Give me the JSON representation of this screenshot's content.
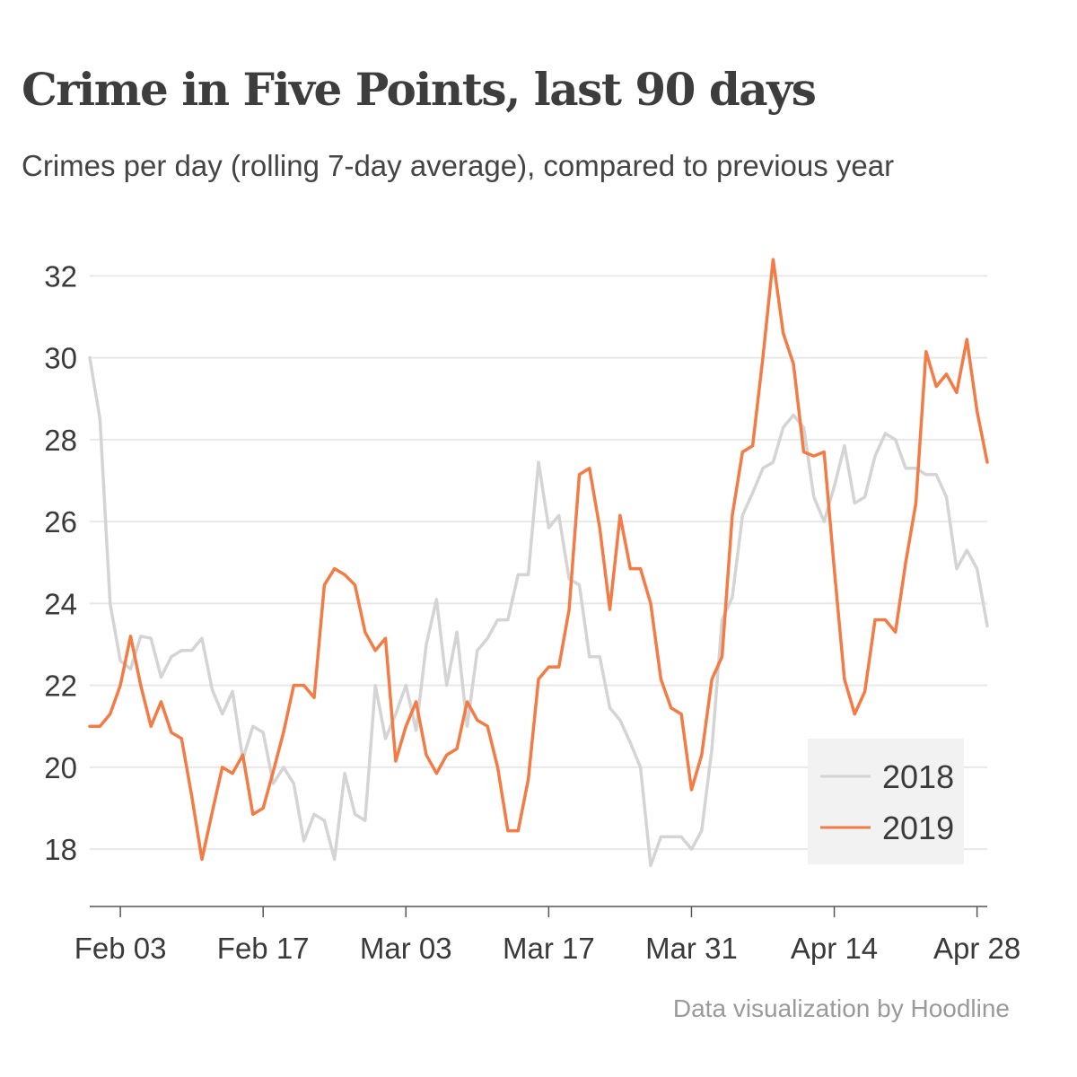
{
  "title": "Crime in Five Points, last 90 days",
  "subtitle": "Crimes per day (rolling 7-day average), compared to previous year",
  "credit": "Data visualization by Hoodline",
  "colors": {
    "series_2018": "#d4d4d4",
    "series_2019": "#f37b45",
    "grid": "#e8e8e8",
    "legend_bg": "#f2f2f2"
  },
  "chart_data": {
    "type": "line",
    "x": [
      "2019-01-31",
      "2019-02-01",
      "2019-02-02",
      "2019-02-03",
      "2019-02-04",
      "2019-02-05",
      "2019-02-06",
      "2019-02-07",
      "2019-02-08",
      "2019-02-09",
      "2019-02-10",
      "2019-02-11",
      "2019-02-12",
      "2019-02-13",
      "2019-02-14",
      "2019-02-15",
      "2019-02-16",
      "2019-02-17",
      "2019-02-18",
      "2019-02-19",
      "2019-02-20",
      "2019-02-21",
      "2019-02-22",
      "2019-02-23",
      "2019-02-24",
      "2019-02-25",
      "2019-02-26",
      "2019-02-27",
      "2019-02-28",
      "2019-03-01",
      "2019-03-02",
      "2019-03-03",
      "2019-03-04",
      "2019-03-05",
      "2019-03-06",
      "2019-03-07",
      "2019-03-08",
      "2019-03-09",
      "2019-03-10",
      "2019-03-11",
      "2019-03-12",
      "2019-03-13",
      "2019-03-14",
      "2019-03-15",
      "2019-03-16",
      "2019-03-17",
      "2019-03-18",
      "2019-03-19",
      "2019-03-20",
      "2019-03-21",
      "2019-03-22",
      "2019-03-23",
      "2019-03-24",
      "2019-03-25",
      "2019-03-26",
      "2019-03-27",
      "2019-03-28",
      "2019-03-29",
      "2019-03-30",
      "2019-03-31",
      "2019-04-01",
      "2019-04-02",
      "2019-04-03",
      "2019-04-04",
      "2019-04-05",
      "2019-04-06",
      "2019-04-07",
      "2019-04-08",
      "2019-04-09",
      "2019-04-10",
      "2019-04-11",
      "2019-04-12",
      "2019-04-13",
      "2019-04-14",
      "2019-04-15",
      "2019-04-16",
      "2019-04-17",
      "2019-04-18",
      "2019-04-19",
      "2019-04-20",
      "2019-04-21",
      "2019-04-22",
      "2019-04-23",
      "2019-04-24",
      "2019-04-25",
      "2019-04-26",
      "2019-04-27",
      "2019-04-28",
      "2019-04-29"
    ],
    "series": [
      {
        "name": "2018",
        "values": [
          30.0,
          28.5,
          24.0,
          22.6,
          22.4,
          23.2,
          23.15,
          22.2,
          22.7,
          22.85,
          22.85,
          23.15,
          21.9,
          21.3,
          21.85,
          20.2,
          21.0,
          20.85,
          19.6,
          20.0,
          19.6,
          18.2,
          18.85,
          18.7,
          17.75,
          19.85,
          18.85,
          18.7,
          22.0,
          20.7,
          21.3,
          22.0,
          20.9,
          23.0,
          24.1,
          22.0,
          23.3,
          21.0,
          22.85,
          23.15,
          23.6,
          23.6,
          24.7,
          24.7,
          27.45,
          25.85,
          26.15,
          24.6,
          24.45,
          22.7,
          22.7,
          21.45,
          21.15,
          20.6,
          20.0,
          17.6,
          18.3,
          18.3,
          18.3,
          18.0,
          18.45,
          20.45,
          23.6,
          24.15,
          26.15,
          26.7,
          27.3,
          27.45,
          28.3,
          28.6,
          28.3,
          26.6,
          26.0,
          26.85,
          27.85,
          26.45,
          26.6,
          27.6,
          28.15,
          28.0,
          27.3,
          27.3,
          27.15,
          27.15,
          26.6,
          24.85,
          25.3,
          24.85,
          23.45
        ]
      },
      {
        "name": "2019",
        "values": [
          21.0,
          21.0,
          21.3,
          22.0,
          23.2,
          22.0,
          21.0,
          21.6,
          20.85,
          20.7,
          19.3,
          17.75,
          18.9,
          20.0,
          19.85,
          20.3,
          18.85,
          19.0,
          19.9,
          20.85,
          22.0,
          22.0,
          21.7,
          24.45,
          24.85,
          24.7,
          24.45,
          23.3,
          22.85,
          23.15,
          20.15,
          21.0,
          21.6,
          20.3,
          19.85,
          20.3,
          20.45,
          21.6,
          21.15,
          21.0,
          20.0,
          18.45,
          18.45,
          19.7,
          22.15,
          22.45,
          22.45,
          23.85,
          27.15,
          27.3,
          25.85,
          23.85,
          26.15,
          24.85,
          24.85,
          24.0,
          22.15,
          21.45,
          21.3,
          19.45,
          20.3,
          22.15,
          22.7,
          26.15,
          27.7,
          27.85,
          30.0,
          32.4,
          30.6,
          29.85,
          27.7,
          27.6,
          27.7,
          24.85,
          22.15,
          21.3,
          21.85,
          23.6,
          23.6,
          23.3,
          25.0,
          26.45,
          30.15,
          29.3,
          29.6,
          29.15,
          30.45,
          28.7,
          27.45
        ]
      }
    ],
    "ylim": [
      16.6,
      32.6
    ],
    "yticks": [
      18,
      20,
      22,
      24,
      26,
      28,
      30,
      32
    ],
    "xticks": [
      {
        "date": "2019-02-03",
        "label": "Feb 03"
      },
      {
        "date": "2019-02-17",
        "label": "Feb 17"
      },
      {
        "date": "2019-03-03",
        "label": "Mar 03"
      },
      {
        "date": "2019-03-17",
        "label": "Mar 17"
      },
      {
        "date": "2019-03-31",
        "label": "Mar 31"
      },
      {
        "date": "2019-04-14",
        "label": "Apr 14"
      },
      {
        "date": "2019-04-28",
        "label": "Apr 28"
      }
    ],
    "grid": "horizontal",
    "legend": {
      "position": "bottom-right",
      "entries": [
        "2018",
        "2019"
      ]
    }
  }
}
